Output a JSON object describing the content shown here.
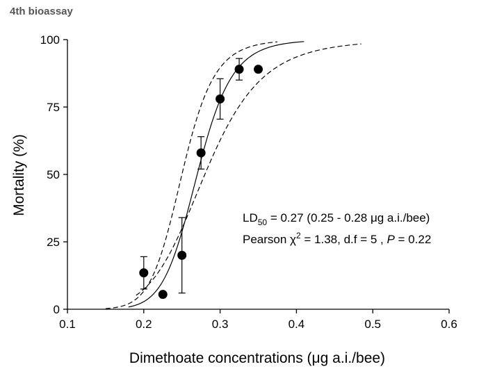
{
  "header": {
    "title": "4th bioassay"
  },
  "chart_data": {
    "type": "scatter",
    "title": "",
    "xlabel": "Dimethoate concentrations (μg a.i./bee)",
    "ylabel": "Mortality (%)",
    "xlim": [
      0.1,
      0.6
    ],
    "ylim": [
      0,
      100
    ],
    "xticks": [
      0.1,
      0.2,
      0.3,
      0.4,
      0.5,
      0.6
    ],
    "xtick_labels": [
      "0.1",
      "0.2",
      "0.3",
      "0.4",
      "0.5",
      "0.6"
    ],
    "yticks": [
      0,
      25,
      50,
      75,
      100
    ],
    "ytick_labels": [
      "0",
      "25",
      "50",
      "75",
      "100"
    ],
    "grid": false,
    "legend": "none",
    "points": [
      {
        "x": 0.2,
        "y": 13.5,
        "err": 6
      },
      {
        "x": 0.225,
        "y": 5.5,
        "err": 0
      },
      {
        "x": 0.25,
        "y": 20,
        "err": 14
      },
      {
        "x": 0.275,
        "y": 58,
        "err": 6
      },
      {
        "x": 0.3,
        "y": 78,
        "err": 7.5
      },
      {
        "x": 0.325,
        "y": 89,
        "err": 4
      },
      {
        "x": 0.35,
        "y": 89,
        "err": 0
      }
    ],
    "fit_curve": {
      "ld50": 0.27,
      "slope": 11.8,
      "x_range": [
        0.18,
        0.41
      ]
    },
    "lower_confidence_curve": {
      "ld50": 0.25,
      "slope": 11.8,
      "x_range": [
        0.15,
        0.375
      ]
    },
    "upper_confidence_curve": {
      "ld50": 0.28,
      "slope": 7.5,
      "x_range": [
        0.19,
        0.485
      ]
    },
    "annotations": {
      "line1_prefix": "LD",
      "line1_sub": "50",
      "line1_rest": " = 0.27 (0.25 - 0.28 μg a.i./bee)",
      "line2_prefix": "Pearson χ",
      "line2_sup": "2",
      "line2_mid": " = 1.38, d.f = 5 , ",
      "line2_italic": "P",
      "line2_end": " = 0.22"
    },
    "colors": {
      "axis": "#000000",
      "marker": "#000000",
      "heading": "#555555"
    }
  }
}
